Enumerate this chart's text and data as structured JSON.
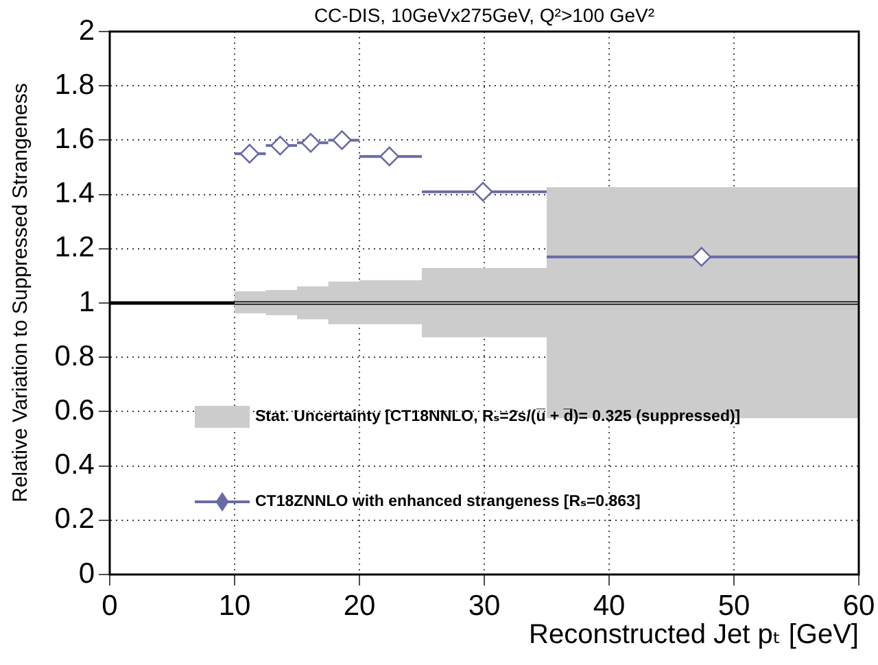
{
  "chart_data": {
    "type": "scatter",
    "title": "CC-DIS, 10GeVx275GeV, Q²>100 GeV²",
    "xlabel": "Reconstructed Jet pₜ [GeV]",
    "ylabel": "Relative Variation to Suppressed Strangeness",
    "xlim": [
      0,
      60
    ],
    "xticks": [
      0,
      10,
      20,
      30,
      40,
      50,
      60
    ],
    "ylim": [
      0,
      2
    ],
    "yticks": [
      0,
      0.2,
      0.4,
      0.6,
      0.8,
      1,
      1.2,
      1.4,
      1.6,
      1.8,
      2
    ],
    "grid": true,
    "legend": "bottom left",
    "ref_lines": [
      {
        "axis": "y",
        "value": 1,
        "color": "#000000"
      }
    ],
    "series": [
      {
        "name": "Stat. Uncertainty [CT18NNLO, Rₛ=2s/(u̅ + d̅)= 0.325 (suppressed)]",
        "type": "step",
        "color": "#cccccc",
        "x": [
          10,
          12.5,
          15,
          17.5,
          20,
          25,
          35,
          60
        ],
        "values": [
          1,
          1,
          1,
          1,
          1,
          1,
          1,
          1
        ],
        "lower": [
          0.962,
          0.955,
          0.94,
          0.922,
          0.922,
          0.874,
          0.576,
          0.576
        ],
        "upper": [
          1.043,
          1.048,
          1.061,
          1.079,
          1.084,
          1.129,
          1.427,
          1.427
        ]
      },
      {
        "name": "CT18ZNNLO with enhanced strangeness [Rₛ=0.863]",
        "color": "#6a6aa6",
        "marker": "diamond",
        "x": [
          11.2,
          13.65,
          16.1,
          18.6,
          22.4,
          29.9,
          47.4
        ],
        "values": [
          1.55,
          1.58,
          1.59,
          1.6,
          1.54,
          1.41,
          1.17
        ],
        "xerrors": [
          [
            10,
            12.5
          ],
          [
            12.5,
            15
          ],
          [
            15,
            17.5
          ],
          [
            17.5,
            20
          ],
          [
            20,
            25
          ],
          [
            25,
            35
          ],
          [
            35,
            60
          ]
        ]
      }
    ]
  }
}
